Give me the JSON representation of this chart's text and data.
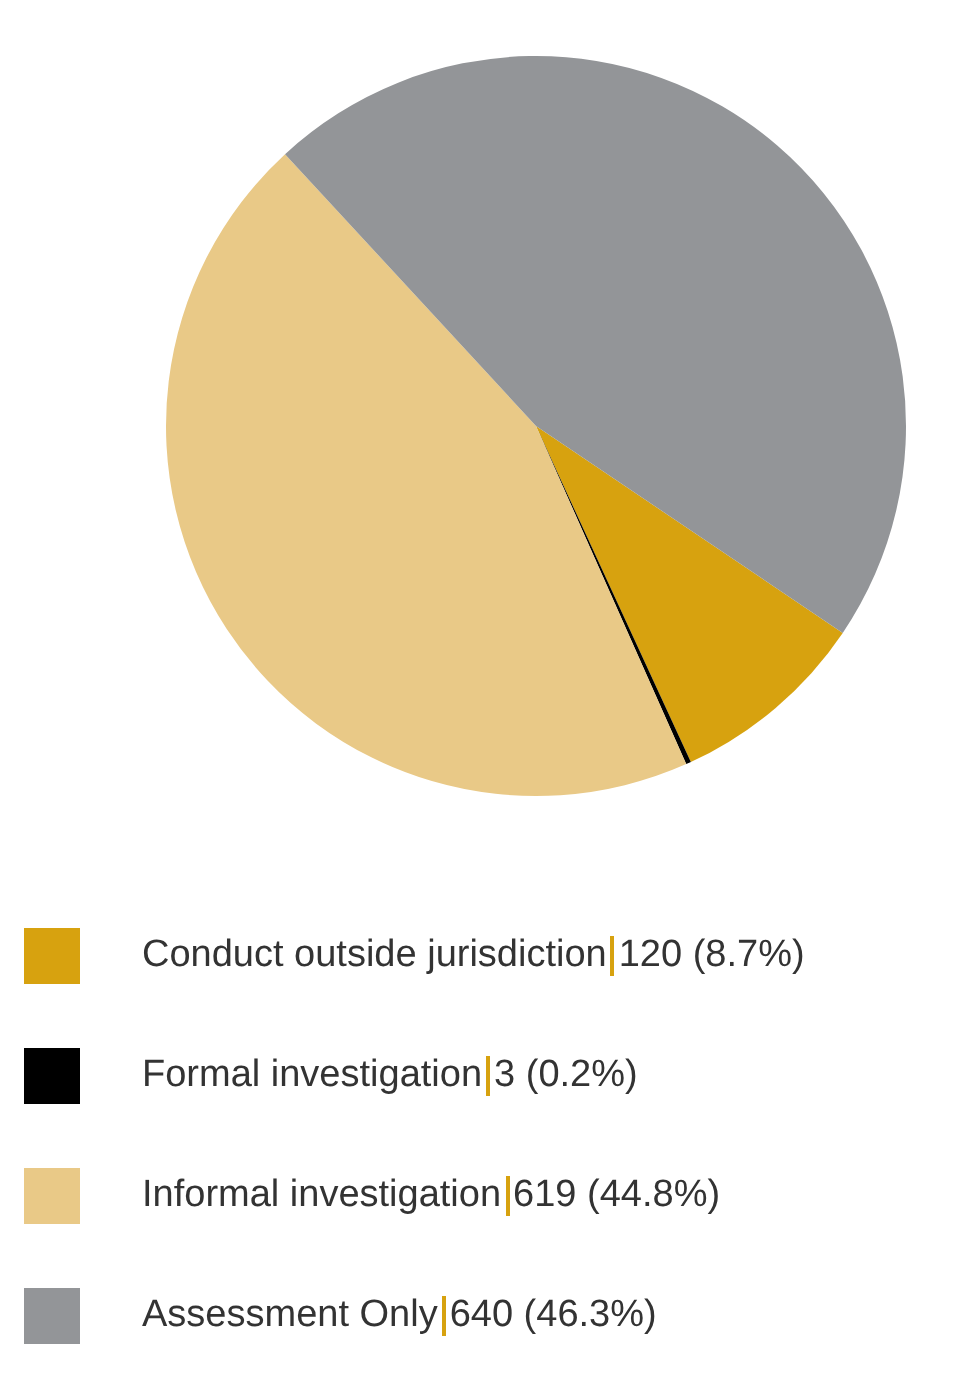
{
  "chart_data": {
    "type": "pie",
    "categories": [
      "Conduct outside jurisdiction",
      "Formal investigation",
      "Informal investigation",
      "Assessment Only"
    ],
    "values": [
      120,
      3,
      619,
      640
    ],
    "colors": [
      "#d7a20f",
      "#000000",
      "#e9c987",
      "#939598"
    ],
    "value_labels": [
      "120 (8.7%)",
      "3 (0.2%)",
      "619 (44.8%)",
      "640 (46.3%)"
    ],
    "legend": "bottom"
  }
}
